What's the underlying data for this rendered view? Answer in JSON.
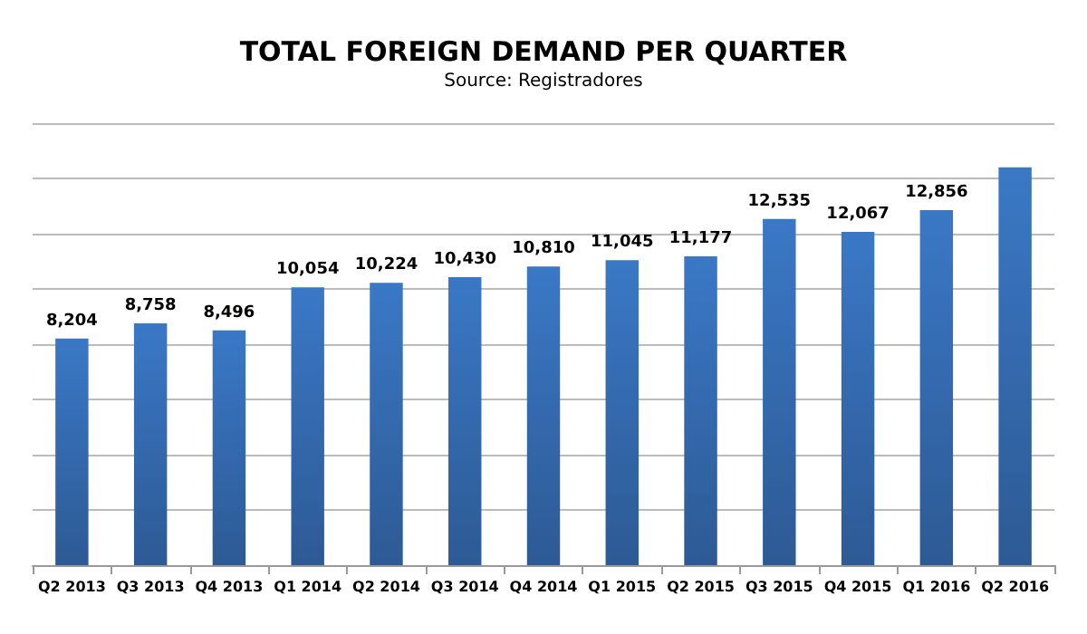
{
  "chart_data": {
    "type": "bar",
    "title": "TOTAL FOREIGN DEMAND PER QUARTER",
    "subtitle": "Source: Registradores",
    "categories": [
      "Q2 2013",
      "Q3 2013",
      "Q4 2013",
      "Q1 2014",
      "Q2 2014",
      "Q3 2014",
      "Q4 2014",
      "Q1 2015",
      "Q2 2015",
      "Q3 2015",
      "Q4 2015",
      "Q1 2016",
      "Q2 2016"
    ],
    "values": [
      8204,
      8758,
      8496,
      10054,
      10224,
      10430,
      10810,
      11045,
      11177,
      12535,
      12067,
      12856,
      14400
    ],
    "value_labels": [
      "8,204",
      "8,758",
      "8,496",
      "10,054",
      "10,224",
      "10,430",
      "10,810",
      "11,045",
      "11,177",
      "12,535",
      "12,067",
      "12,856",
      null
    ],
    "color": "#3a78c6",
    "ylim": [
      0,
      16000
    ],
    "yticks": [
      {
        "value": 0,
        "label": null
      },
      {
        "value": 2000,
        "label": null
      },
      {
        "value": 4000,
        "label": null
      },
      {
        "value": 6000,
        "label": null
      },
      {
        "value": 8000,
        "label": null
      },
      {
        "value": 10000,
        "label": null
      },
      {
        "value": 12000,
        "label": null
      },
      {
        "value": 14000,
        "label": null
      },
      {
        "value": 16000,
        "label": null
      }
    ],
    "grid": "y",
    "tick_labels": "x"
  }
}
